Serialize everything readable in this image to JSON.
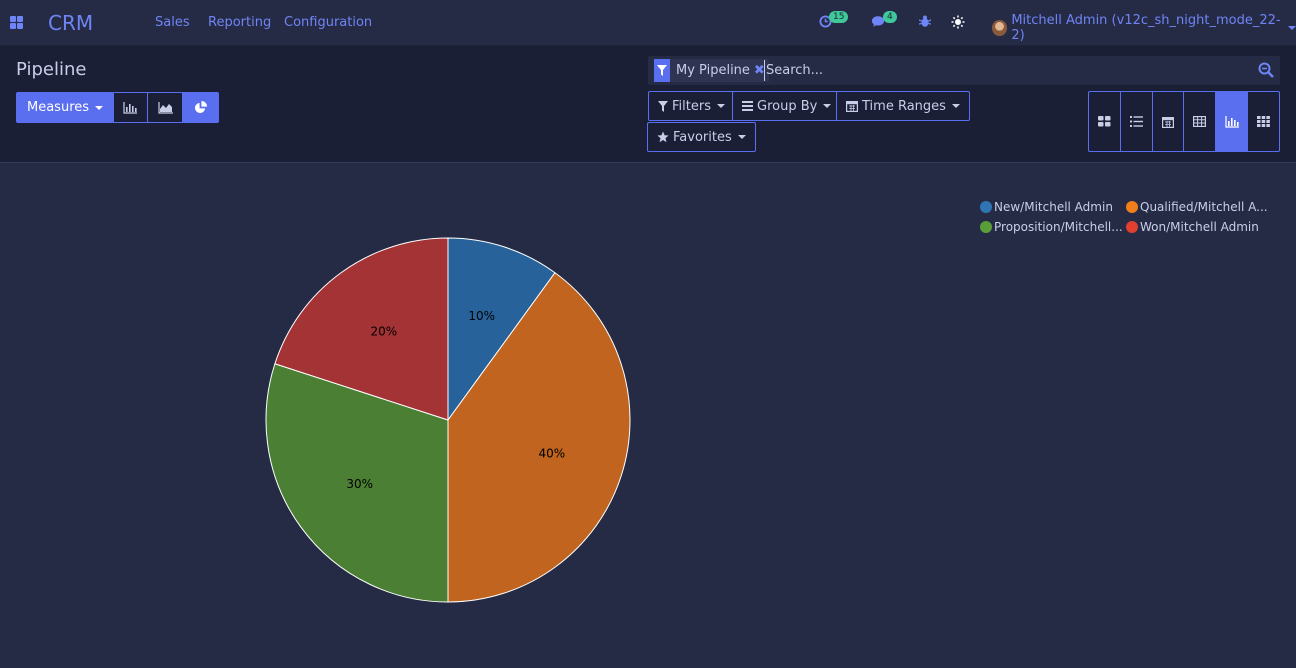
{
  "navbar": {
    "brand": "CRM",
    "menus": [
      "Sales",
      "Reporting",
      "Configuration"
    ],
    "activity_count": "15",
    "message_count": "4",
    "user_name": "Mitchell Admin (v12c_sh_night_mode_22-2)",
    "icons": [
      "apps-icon",
      "clock-icon",
      "chat-icon",
      "bug-icon",
      "sun-icon"
    ]
  },
  "control_panel": {
    "title": "Pipeline",
    "measures_label": "Measures",
    "chart_modes": [
      "bar-chart-icon",
      "line-chart-icon",
      "pie-chart-icon"
    ],
    "active_chart_mode": "pie",
    "search": {
      "facet_label": "My Pipeline",
      "placeholder": "Search..."
    },
    "filters_label": "Filters",
    "group_by_label": "Group By",
    "time_ranges_label": "Time Ranges",
    "favorites_label": "Favorites",
    "views": [
      "kanban",
      "list",
      "calendar",
      "pivot",
      "graph",
      "cohort"
    ],
    "active_view": "graph"
  },
  "colors": {
    "accent": "#5a6ff0",
    "link": "#6f84f6",
    "background": "#262b45",
    "panel": "#1b1f36"
  },
  "chart_data": {
    "type": "pie",
    "categories": [
      "New/Mitchell Admin",
      "Qualified/Mitchell A...",
      "Proposition/Mitchell...",
      "Won/Mitchell Admin"
    ],
    "values": [
      10,
      40,
      30,
      20
    ],
    "labels": [
      "10%",
      "40%",
      "30%",
      "20%"
    ],
    "slice_colors": [
      "#27639a",
      "#c0641f",
      "#4a7f34",
      "#a33335"
    ],
    "legend_colors": [
      "#2f75b5",
      "#f07e1a",
      "#5a9e3a",
      "#e0402f"
    ],
    "slice_order": [
      0,
      1,
      2,
      3
    ],
    "legend_order": [
      0,
      1,
      2,
      3
    ],
    "legend_placement": "top-right"
  }
}
